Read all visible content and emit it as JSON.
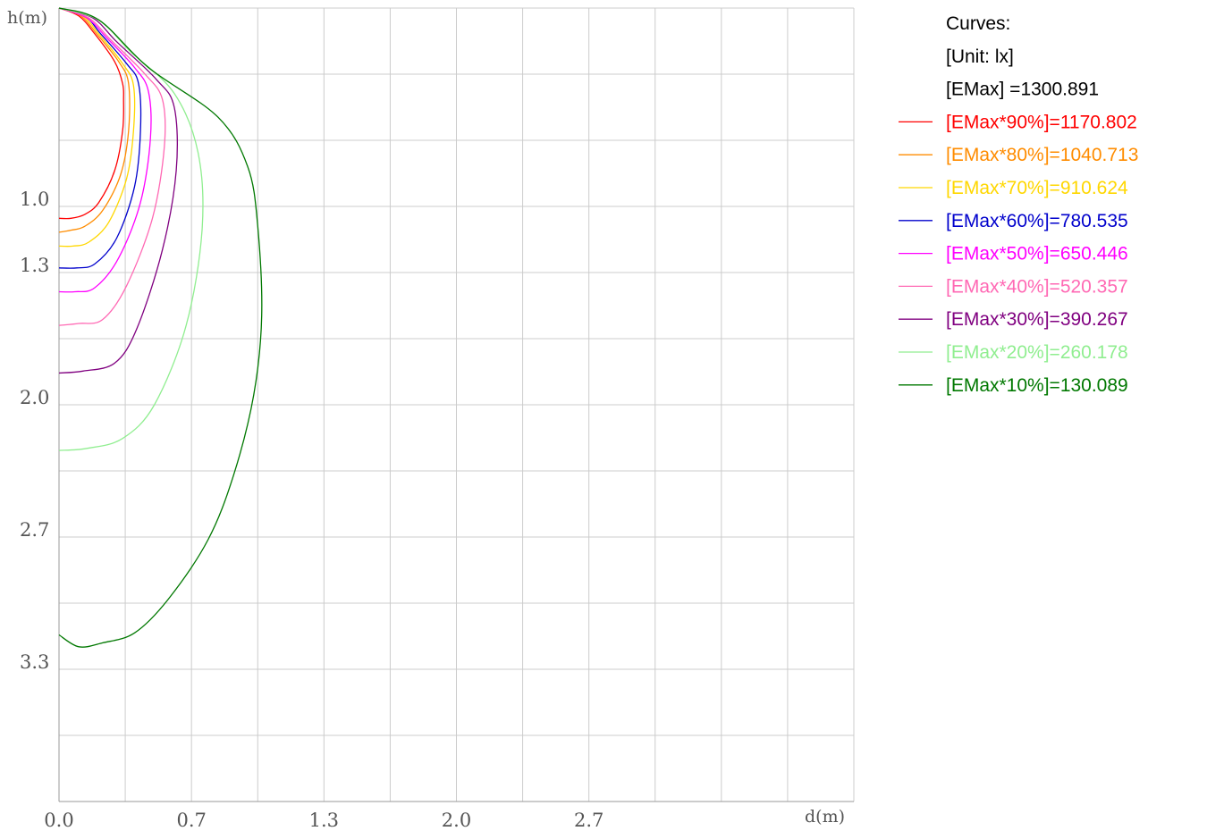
{
  "chart_data": {
    "type": "line",
    "title": "",
    "xlabel": "d(m)",
    "ylabel": "h(m)",
    "xlim": [
      0,
      4.0
    ],
    "ylim": [
      0,
      4.0
    ],
    "y_inverted": true,
    "grid": true,
    "x_tick_labels": [
      "0.0",
      "0.7",
      "1.3",
      "2.0",
      "2.7"
    ],
    "y_tick_labels": [
      "1.0",
      "1.3",
      "2.0",
      "2.7",
      "3.3"
    ],
    "legend": {
      "position": "right",
      "header": [
        "Curves:",
        "[Unit: lx]",
        "[EMax]   =1300.891"
      ]
    },
    "series": [
      {
        "name": "[EMax*90%]=1170.802",
        "color": "#ff0000",
        "points": [
          [
            0.0,
            0.0
          ],
          [
            0.1,
            0.04
          ],
          [
            0.18,
            0.13
          ],
          [
            0.28,
            0.27
          ],
          [
            0.32,
            0.38
          ],
          [
            0.325,
            0.46
          ],
          [
            0.32,
            0.62
          ],
          [
            0.28,
            0.82
          ],
          [
            0.2,
            0.98
          ],
          [
            0.13,
            1.04
          ],
          [
            0.06,
            1.06
          ],
          [
            0.0,
            1.06
          ]
        ]
      },
      {
        "name": "[EMax*80%]=1040.713",
        "color": "#ff8c00",
        "points": [
          [
            0.0,
            0.0
          ],
          [
            0.11,
            0.04
          ],
          [
            0.19,
            0.13
          ],
          [
            0.3,
            0.27
          ],
          [
            0.35,
            0.38
          ],
          [
            0.35,
            0.62
          ],
          [
            0.31,
            0.84
          ],
          [
            0.22,
            1.02
          ],
          [
            0.13,
            1.1
          ],
          [
            0.06,
            1.12
          ],
          [
            0.0,
            1.13
          ]
        ]
      },
      {
        "name": "[EMax*70%]=910.624",
        "color": "#ffd700",
        "points": [
          [
            0.0,
            0.0
          ],
          [
            0.12,
            0.04
          ],
          [
            0.2,
            0.13
          ],
          [
            0.32,
            0.28
          ],
          [
            0.375,
            0.39
          ],
          [
            0.375,
            0.62
          ],
          [
            0.34,
            0.86
          ],
          [
            0.25,
            1.08
          ],
          [
            0.15,
            1.18
          ],
          [
            0.07,
            1.2
          ],
          [
            0.0,
            1.2
          ]
        ]
      },
      {
        "name": "[EMax*60%]=780.535",
        "color": "#0000cc",
        "points": [
          [
            0.0,
            0.0
          ],
          [
            0.13,
            0.04
          ],
          [
            0.21,
            0.13
          ],
          [
            0.34,
            0.28
          ],
          [
            0.4,
            0.38
          ],
          [
            0.41,
            0.62
          ],
          [
            0.38,
            0.9
          ],
          [
            0.29,
            1.16
          ],
          [
            0.18,
            1.29
          ],
          [
            0.09,
            1.31
          ],
          [
            0.0,
            1.31
          ]
        ]
      },
      {
        "name": "[EMax*50%]=650.446",
        "color": "#ff00ff",
        "points": [
          [
            0.0,
            0.0
          ],
          [
            0.14,
            0.05
          ],
          [
            0.24,
            0.15
          ],
          [
            0.38,
            0.3
          ],
          [
            0.45,
            0.42
          ],
          [
            0.46,
            0.66
          ],
          [
            0.41,
            0.98
          ],
          [
            0.3,
            1.26
          ],
          [
            0.18,
            1.41
          ],
          [
            0.08,
            1.43
          ],
          [
            0.0,
            1.43
          ]
        ]
      },
      {
        "name": "[EMax*40%]=520.357",
        "color": "#ff69b4",
        "points": [
          [
            0.0,
            0.0
          ],
          [
            0.15,
            0.05
          ],
          [
            0.26,
            0.16
          ],
          [
            0.43,
            0.33
          ],
          [
            0.52,
            0.46
          ],
          [
            0.53,
            0.7
          ],
          [
            0.47,
            1.06
          ],
          [
            0.34,
            1.4
          ],
          [
            0.22,
            1.57
          ],
          [
            0.1,
            1.59
          ],
          [
            0.0,
            1.6
          ]
        ]
      },
      {
        "name": "[EMax*30%]=390.267",
        "color": "#800080",
        "points": [
          [
            0.0,
            0.0
          ],
          [
            0.17,
            0.05
          ],
          [
            0.29,
            0.17
          ],
          [
            0.49,
            0.36
          ],
          [
            0.58,
            0.5
          ],
          [
            0.59,
            0.82
          ],
          [
            0.52,
            1.22
          ],
          [
            0.39,
            1.62
          ],
          [
            0.28,
            1.79
          ],
          [
            0.12,
            1.83
          ],
          [
            0.0,
            1.84
          ]
        ]
      },
      {
        "name": "[EMax*20%]=260.178",
        "color": "#90ee90",
        "points": [
          [
            0.0,
            0.0
          ],
          [
            0.2,
            0.06
          ],
          [
            0.36,
            0.22
          ],
          [
            0.58,
            0.43
          ],
          [
            0.7,
            0.73
          ],
          [
            0.72,
            1.12
          ],
          [
            0.64,
            1.6
          ],
          [
            0.48,
            2.0
          ],
          [
            0.32,
            2.17
          ],
          [
            0.14,
            2.22
          ],
          [
            0.0,
            2.23
          ]
        ]
      },
      {
        "name": "[EMax*10%]=130.089",
        "color": "#007800",
        "points": [
          [
            0.0,
            0.0
          ],
          [
            0.2,
            0.06
          ],
          [
            0.45,
            0.3
          ],
          [
            0.8,
            0.55
          ],
          [
            0.95,
            0.8
          ],
          [
            1.0,
            1.1
          ],
          [
            1.02,
            1.55
          ],
          [
            0.98,
            1.95
          ],
          [
            0.88,
            2.35
          ],
          [
            0.75,
            2.68
          ],
          [
            0.55,
            2.98
          ],
          [
            0.38,
            3.15
          ],
          [
            0.22,
            3.2
          ],
          [
            0.1,
            3.22
          ],
          [
            0.0,
            3.16
          ]
        ]
      }
    ]
  }
}
